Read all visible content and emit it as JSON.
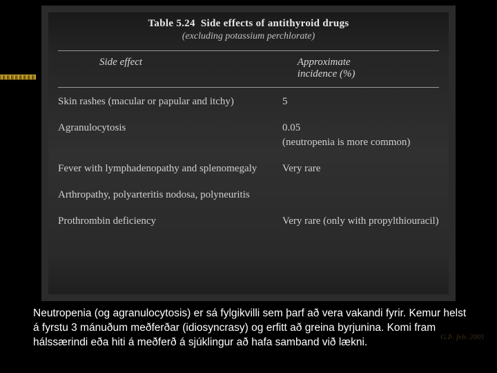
{
  "table": {
    "title_prefix": "Table 5.24",
    "title_text": "Side effects of antithyroid drugs",
    "subtitle": "(excluding potassium perchlorate)",
    "header": {
      "left": "Side effect",
      "right_line1": "Approximate",
      "right_line2": "incidence (%)"
    },
    "rows": [
      {
        "effect": "Skin rashes (macular or papular and itchy)",
        "incidence": "5"
      },
      {
        "effect": "Agranulocytosis",
        "incidence": "0.05\n(neutropenia is more common)"
      },
      {
        "effect": "Fever with lymphadenopathy and splenomegaly",
        "incidence": "Very rare"
      },
      {
        "effect": "Arthropathy, polyarteritis nodosa, polyneuritis",
        "incidence": ""
      },
      {
        "effect": "Prothrombin deficiency",
        "incidence": "Very rare (only with propylthiouracil)"
      }
    ],
    "colors": {
      "page_bg": "#000000",
      "scan_bg": "#2b2b2b",
      "text": "#d0d0d0",
      "rule": "#9a9a9a"
    },
    "fontsize": {
      "title": 15,
      "header": 15,
      "body": 15
    }
  },
  "caption": {
    "text": "Neutropenia (og agranulocytosis) er sá fylgikvilli sem þarf að vera vakandi fyrir. Kemur helst á fyrstu 3 mánuðum meðferðar (idiosyncrasy) og erfitt að greina byrjunina. Komi fram hálssærindi eða hiti á meðferð á sjúklingur að hafa samband við lækni.",
    "color": "#ffffff",
    "fontsize": 15.5
  },
  "watermark": "G.Þ. feb. 2001"
}
